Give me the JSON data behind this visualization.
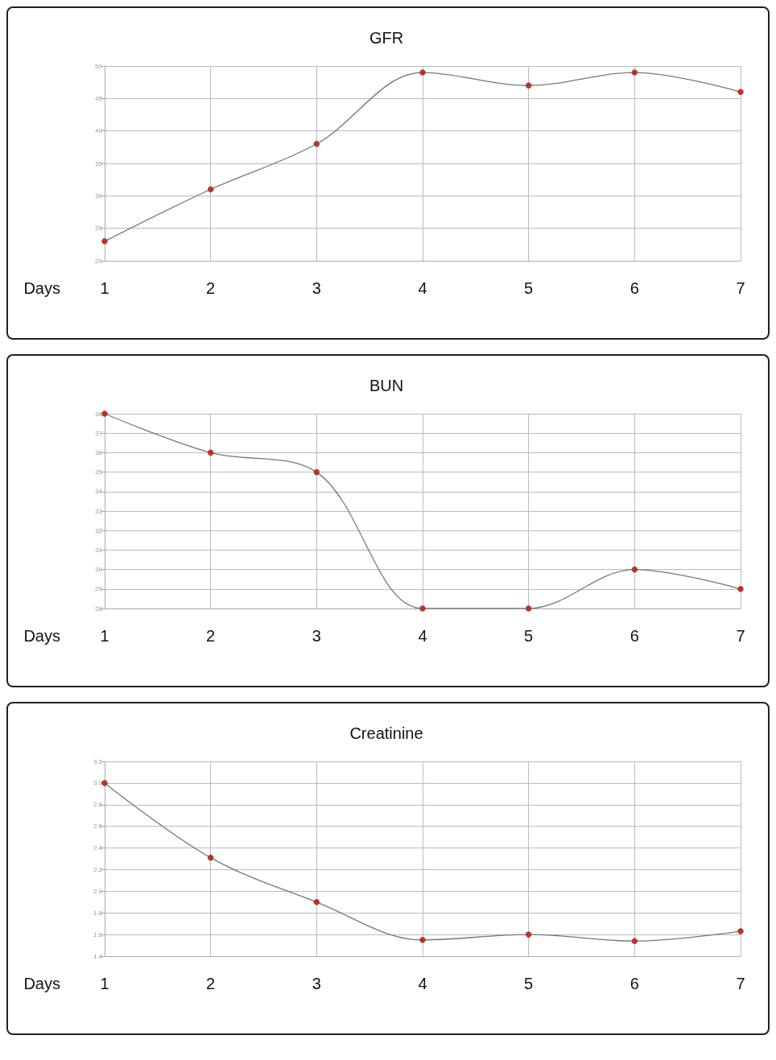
{
  "chart_data": [
    {
      "type": "line",
      "title": "GFR",
      "xlabel": "Days",
      "categories": [
        "1",
        "2",
        "3",
        "4",
        "5",
        "6",
        "7"
      ],
      "series": [
        {
          "color": "#cc2a1f",
          "values": [
            23,
            31,
            38,
            49,
            47,
            49,
            46
          ]
        }
      ],
      "ylim": [
        20,
        50
      ],
      "yticks": [
        20,
        25,
        30,
        35,
        40,
        45,
        50
      ],
      "grid": true,
      "marker": "circle",
      "line_style": "solid"
    },
    {
      "type": "line",
      "title": "BUN",
      "xlabel": "Days",
      "categories": [
        "1",
        "2",
        "3",
        "4",
        "5",
        "6",
        "7"
      ],
      "series": [
        {
          "color": "#cc2a1f",
          "values": [
            38,
            36,
            35,
            28,
            28,
            30,
            29
          ]
        }
      ],
      "ylim": [
        28,
        38
      ],
      "yticks": [
        28,
        29,
        30,
        31,
        32,
        33,
        34,
        35,
        36,
        37,
        38
      ],
      "grid": true,
      "marker": "circle",
      "line_style": "solid"
    },
    {
      "type": "line",
      "title": "Creatinine",
      "xlabel": "Days",
      "categories": [
        "1",
        "2",
        "3",
        "4",
        "5",
        "6",
        "7"
      ],
      "series": [
        {
          "color": "#cc2a1f",
          "values": [
            3.0,
            2.31,
            1.9,
            1.55,
            1.6,
            1.54,
            1.63
          ]
        }
      ],
      "ylim": [
        1.4,
        3.2
      ],
      "yticks": [
        1.4,
        1.6,
        1.8,
        {
          "value": 2.0,
          "label": "2.0"
        },
        2.2,
        2.4,
        2.6,
        2.8,
        {
          "value": 3.0,
          "label": "3.0"
        },
        3.2
      ],
      "grid": true,
      "marker": "circle",
      "line_style": "solid"
    }
  ]
}
